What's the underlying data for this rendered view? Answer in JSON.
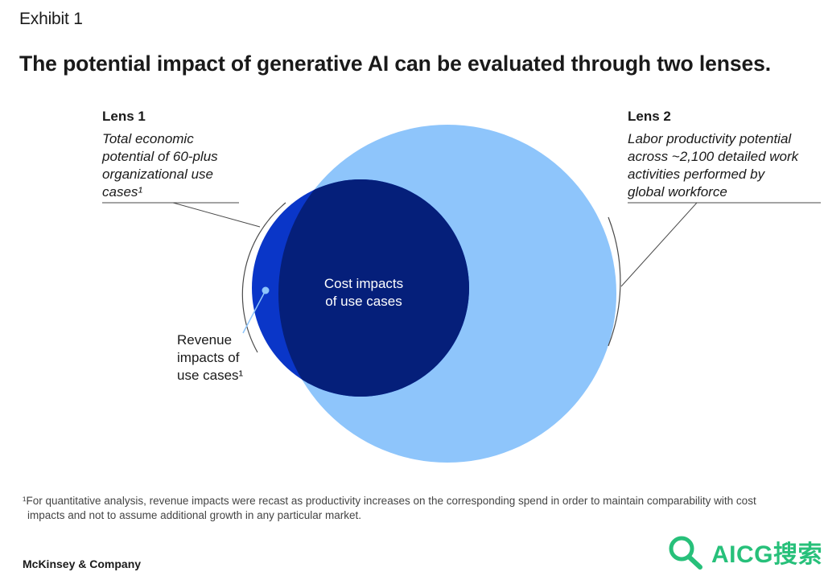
{
  "header": {
    "exhibit": "Exhibit 1",
    "title": "The potential impact of generative AI can be evaluated through two lenses."
  },
  "diagram": {
    "lens1": {
      "title": "Lens 1",
      "description": "Total economic\npotential of 60-plus\norganizational use\ncases¹"
    },
    "lens2": {
      "title": "Lens 2",
      "description": "Labor productivity potential\nacross ~2,100 detailed work\nactivities performed by\nglobal workforce"
    },
    "cost_label": "Cost impacts\nof use cases",
    "revenue_label": "Revenue\nimpacts of\nuse cases¹",
    "colors": {
      "large_circle": "#8ec5fb",
      "revenue_circle": "#0a36c8",
      "cost_circle": "#051f7a",
      "connector": "#4a4a4a",
      "dot": "#8ec5fb"
    }
  },
  "footnote": {
    "line1": "¹For quantitative analysis, revenue impacts were recast as productivity increases on the corresponding spend in order to maintain comparability with cost",
    "line2": "impacts and not to assume additional growth in any particular market."
  },
  "brand": "McKinsey & Company",
  "watermark": {
    "text": "AICG搜索",
    "icon": "magnifier-icon",
    "color": "#27c07a"
  }
}
